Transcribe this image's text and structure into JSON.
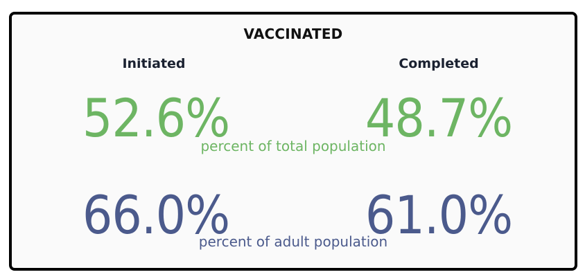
{
  "title": "VACCINATED",
  "columns": {
    "initiated": "Initiated",
    "completed": "Completed"
  },
  "total_population": {
    "initiated": "52.6%",
    "completed": "48.7%",
    "caption": "percent of total population"
  },
  "adult_population": {
    "initiated": "66.0%",
    "completed": "61.0%",
    "caption": "percent of adult population"
  },
  "colors": {
    "green": "#6db563",
    "blue": "#4b5a8c",
    "border": "#000000",
    "background": "#fafafa"
  }
}
